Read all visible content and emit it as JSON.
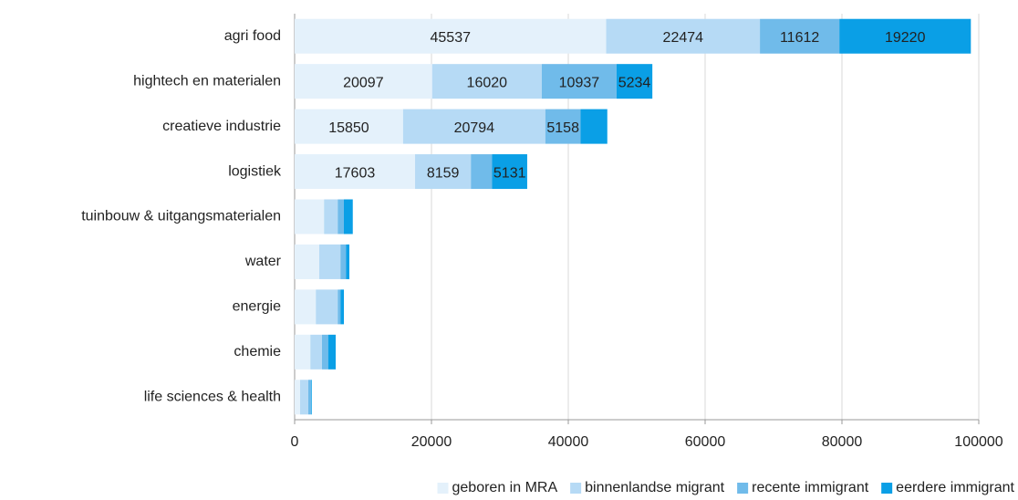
{
  "chart_data": {
    "type": "stacked_barh",
    "categories": [
      "agri food",
      "hightech en materialen",
      "creatieve industrie",
      "logistiek",
      "tuinbouw & uitgangsmaterialen",
      "water",
      "energie",
      "chemie",
      "life sciences & health"
    ],
    "series": [
      {
        "name": "geboren in MRA",
        "color": "#e4f1fb",
        "values": [
          45537,
          20097,
          15850,
          17603,
          4300,
          3600,
          3100,
          2300,
          800
        ]
      },
      {
        "name": "binnenlandse migrant",
        "color": "#b6daf5",
        "values": [
          22474,
          16020,
          20794,
          8159,
          2000,
          3100,
          3200,
          1700,
          1200
        ]
      },
      {
        "name": "recente immigrant",
        "color": "#70bbea",
        "values": [
          11612,
          10937,
          5158,
          3100,
          900,
          800,
          400,
          900,
          400
        ]
      },
      {
        "name": "eerdere immigrant",
        "color": "#0a9fe6",
        "values": [
          19220,
          5234,
          3900,
          5131,
          1300,
          500,
          500,
          1100,
          100
        ]
      }
    ],
    "xlim": [
      0,
      100000
    ],
    "xticks": [
      0,
      20000,
      40000,
      60000,
      80000,
      100000
    ],
    "grid": true,
    "legend": "bottom"
  }
}
